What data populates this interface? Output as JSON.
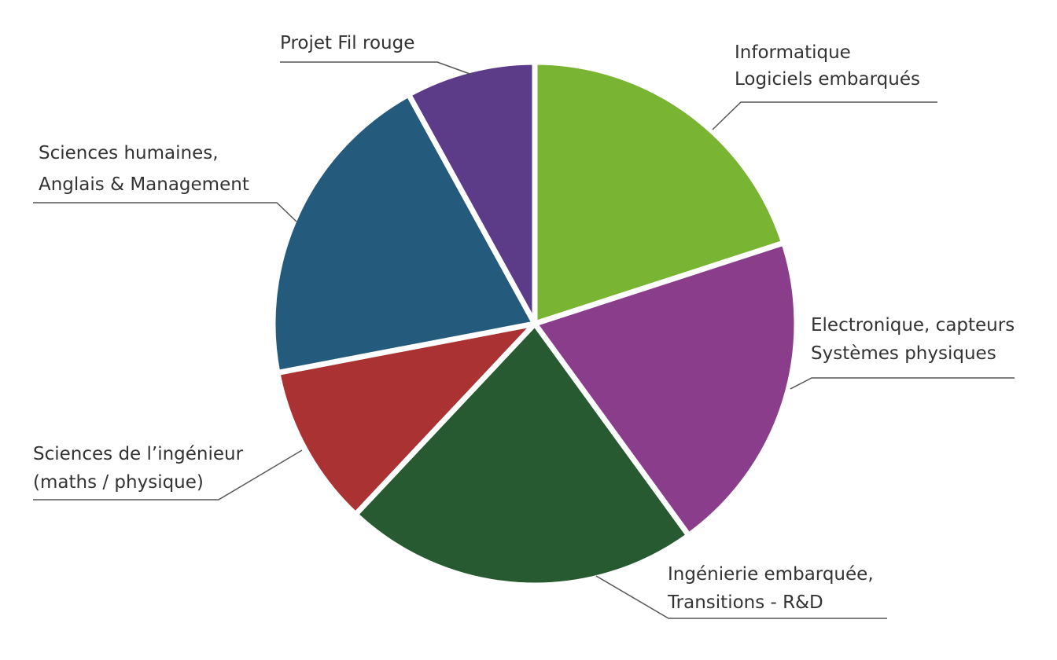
{
  "chart_data": {
    "type": "pie",
    "start_angle_deg": 0,
    "direction": "clockwise",
    "slice_gap_color": "#ffffff",
    "slices": [
      {
        "name": "informatique",
        "lines": [
          "Informatique",
          "Logiciels embarqués"
        ],
        "value": 20,
        "color": "#79b433"
      },
      {
        "name": "electronique",
        "lines": [
          "Electronique, capteurs",
          "Systèmes physiques"
        ],
        "value": 20,
        "color": "#8a3d8a"
      },
      {
        "name": "ingenierie",
        "lines": [
          "Ingénierie embarquée,",
          "Transitions - R&D"
        ],
        "value": 22,
        "color": "#285a32"
      },
      {
        "name": "sciences-ingenieur",
        "lines": [
          "Sciences de l’ingénieur",
          "(maths / physique)"
        ],
        "value": 10,
        "color": "#ab3233"
      },
      {
        "name": "sciences-humaines",
        "lines": [
          "Sciences humaines,",
          "Anglais & Management"
        ],
        "value": 20,
        "color": "#245a7b"
      },
      {
        "name": "projet-fil-rouge",
        "lines": [
          "Projet Fil rouge"
        ],
        "value": 8,
        "color": "#5c3b88"
      }
    ]
  }
}
